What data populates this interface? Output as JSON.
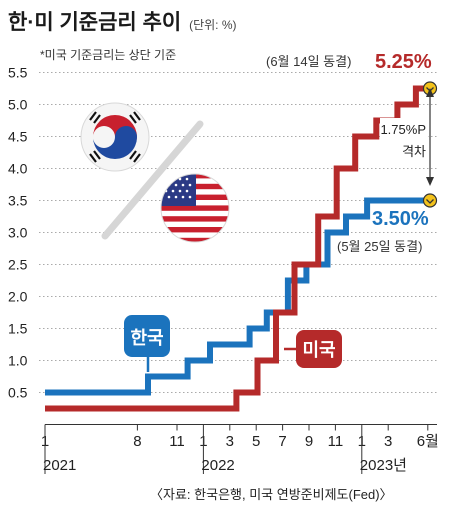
{
  "title": "한·미 기준금리 추이",
  "unit": "(단위: %)",
  "note": "*미국 기준금리는 상단 기준",
  "source": "〈자료: 한국은행, 미국 연방준비제도(Fed)〉",
  "colors": {
    "korea": "#1b73bd",
    "usa": "#b52a2a",
    "grid": "#8f8f8f",
    "text": "#222222",
    "marker": "#f3c21b"
  },
  "chart_data": {
    "type": "line",
    "step": true,
    "ylim": [
      0,
      5.5
    ],
    "yticks": [
      "0.5",
      "1.0",
      "1.5",
      "2.0",
      "2.5",
      "3.0",
      "3.5",
      "4.0",
      "4.5",
      "5.0",
      "5.5"
    ],
    "x_ticks": [
      {
        "label": "1",
        "month": 0
      },
      {
        "label": "8",
        "month": 7
      },
      {
        "label": "11",
        "month": 10
      },
      {
        "label": "1",
        "month": 12
      },
      {
        "label": "3",
        "month": 14
      },
      {
        "label": "5",
        "month": 16
      },
      {
        "label": "7",
        "month": 18
      },
      {
        "label": "9",
        "month": 20
      },
      {
        "label": "11",
        "month": 22
      },
      {
        "label": "1",
        "month": 24
      },
      {
        "label": "3",
        "month": 26
      },
      {
        "label": "6월",
        "month": 29
      }
    ],
    "years": [
      {
        "label": "2021",
        "month": 0
      },
      {
        "label": "2022",
        "month": 12
      },
      {
        "label": "2023년",
        "month": 24
      }
    ],
    "series": [
      {
        "name": "한국",
        "points": [
          [
            0,
            0.5
          ],
          [
            7.8,
            0.5
          ],
          [
            7.8,
            0.75
          ],
          [
            10.8,
            0.75
          ],
          [
            10.8,
            1.0
          ],
          [
            12.5,
            1.0
          ],
          [
            12.5,
            1.25
          ],
          [
            15.5,
            1.25
          ],
          [
            15.5,
            1.5
          ],
          [
            16.8,
            1.5
          ],
          [
            16.8,
            1.75
          ],
          [
            18.4,
            1.75
          ],
          [
            18.4,
            2.25
          ],
          [
            19.8,
            2.25
          ],
          [
            19.8,
            2.5
          ],
          [
            21.4,
            2.5
          ],
          [
            21.4,
            3.0
          ],
          [
            22.8,
            3.0
          ],
          [
            22.8,
            3.25
          ],
          [
            24.4,
            3.25
          ],
          [
            24.4,
            3.5
          ],
          [
            29,
            3.5
          ]
        ]
      },
      {
        "name": "미국",
        "points": [
          [
            0,
            0.25
          ],
          [
            14.5,
            0.25
          ],
          [
            14.5,
            0.5
          ],
          [
            16.1,
            0.5
          ],
          [
            16.1,
            1.0
          ],
          [
            17.5,
            1.0
          ],
          [
            17.5,
            1.75
          ],
          [
            18.9,
            1.75
          ],
          [
            18.9,
            2.5
          ],
          [
            20.7,
            2.5
          ],
          [
            20.7,
            3.25
          ],
          [
            22.1,
            3.25
          ],
          [
            22.1,
            4.0
          ],
          [
            23.5,
            4.0
          ],
          [
            23.5,
            4.5
          ],
          [
            25.1,
            4.5
          ],
          [
            25.1,
            4.75
          ],
          [
            26.7,
            4.75
          ],
          [
            26.7,
            5.0
          ],
          [
            28.1,
            5.0
          ],
          [
            28.1,
            5.25
          ],
          [
            29,
            5.25
          ]
        ]
      }
    ],
    "annotations": {
      "usa_freeze": "(6월 14일 동결)",
      "usa_rate": "5.25%",
      "gap": [
        "1.75%P",
        "격차"
      ],
      "kor_rate": "3.50%",
      "kor_freeze": "(5월 25일 동결)"
    }
  }
}
